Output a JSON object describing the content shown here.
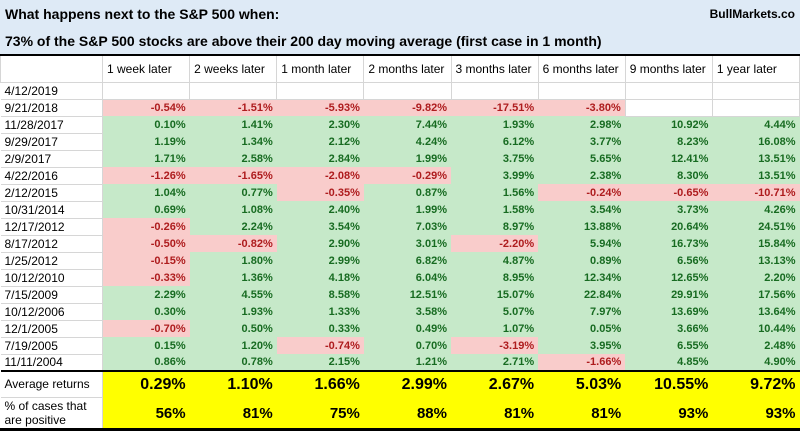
{
  "chart_data": {
    "type": "table",
    "title": "What happens next to the S&P 500 when:",
    "subtitle": "73% of the S&P 500 stocks are above their 200 day moving average (first case in 1 month)",
    "source": "BullMarkets.co",
    "columns": [
      "1 week later",
      "2 weeks later",
      "1 month later",
      "2 months later",
      "3 months later",
      "6 months later",
      "9 months later",
      "1 year later"
    ],
    "rows": [
      {
        "date": "4/12/2019",
        "values": [
          "",
          "",
          "",
          "",
          "",
          "",
          "",
          ""
        ]
      },
      {
        "date": "9/21/2018",
        "values": [
          "-0.54%",
          "-1.51%",
          "-5.93%",
          "-9.82%",
          "-17.51%",
          "-3.80%",
          "",
          ""
        ]
      },
      {
        "date": "11/28/2017",
        "values": [
          "0.10%",
          "1.41%",
          "2.30%",
          "7.44%",
          "1.93%",
          "2.98%",
          "10.92%",
          "4.44%"
        ]
      },
      {
        "date": "9/29/2017",
        "values": [
          "1.19%",
          "1.34%",
          "2.12%",
          "4.24%",
          "6.12%",
          "3.77%",
          "8.23%",
          "16.08%"
        ]
      },
      {
        "date": "2/9/2017",
        "values": [
          "1.71%",
          "2.58%",
          "2.84%",
          "1.99%",
          "3.75%",
          "5.65%",
          "12.41%",
          "13.51%"
        ]
      },
      {
        "date": "4/22/2016",
        "values": [
          "-1.26%",
          "-1.65%",
          "-2.08%",
          "-0.29%",
          "3.99%",
          "2.38%",
          "8.30%",
          "13.51%"
        ]
      },
      {
        "date": "2/12/2015",
        "values": [
          "1.04%",
          "0.77%",
          "-0.35%",
          "0.87%",
          "1.56%",
          "-0.24%",
          "-0.65%",
          "-10.71%"
        ]
      },
      {
        "date": "10/31/2014",
        "values": [
          "0.69%",
          "1.08%",
          "2.40%",
          "1.99%",
          "1.58%",
          "3.54%",
          "3.73%",
          "4.26%"
        ]
      },
      {
        "date": "12/17/2012",
        "values": [
          "-0.26%",
          "2.24%",
          "3.54%",
          "7.03%",
          "8.97%",
          "13.88%",
          "20.64%",
          "24.51%"
        ]
      },
      {
        "date": "8/17/2012",
        "values": [
          "-0.50%",
          "-0.82%",
          "2.90%",
          "3.01%",
          "-2.20%",
          "5.94%",
          "16.73%",
          "15.84%"
        ]
      },
      {
        "date": "1/25/2012",
        "values": [
          "-0.15%",
          "1.80%",
          "2.99%",
          "6.82%",
          "4.87%",
          "0.89%",
          "6.56%",
          "13.13%"
        ]
      },
      {
        "date": "10/12/2010",
        "values": [
          "-0.33%",
          "1.36%",
          "4.18%",
          "6.04%",
          "8.95%",
          "12.34%",
          "12.65%",
          "2.20%"
        ]
      },
      {
        "date": "7/15/2009",
        "values": [
          "2.29%",
          "4.55%",
          "8.58%",
          "12.51%",
          "15.07%",
          "22.84%",
          "29.91%",
          "17.56%"
        ]
      },
      {
        "date": "10/12/2006",
        "values": [
          "0.30%",
          "1.93%",
          "1.33%",
          "3.58%",
          "5.07%",
          "7.97%",
          "13.69%",
          "13.64%"
        ]
      },
      {
        "date": "12/1/2005",
        "values": [
          "-0.70%",
          "0.50%",
          "0.33%",
          "0.49%",
          "1.07%",
          "0.05%",
          "3.66%",
          "10.44%"
        ]
      },
      {
        "date": "7/19/2005",
        "values": [
          "0.15%",
          "1.20%",
          "-0.74%",
          "0.70%",
          "-3.19%",
          "3.95%",
          "6.55%",
          "2.48%"
        ]
      },
      {
        "date": "11/11/2004",
        "values": [
          "0.86%",
          "0.78%",
          "2.15%",
          "1.21%",
          "2.71%",
          "-1.66%",
          "4.85%",
          "4.90%"
        ]
      }
    ],
    "summary_rows": [
      {
        "label": "Average returns",
        "values": [
          "0.29%",
          "1.10%",
          "1.66%",
          "2.99%",
          "2.67%",
          "5.03%",
          "10.55%",
          "9.72%"
        ]
      },
      {
        "label": "% of cases that are positive",
        "values": [
          "56%",
          "81%",
          "75%",
          "88%",
          "81%",
          "81%",
          "93%",
          "93%"
        ]
      }
    ]
  },
  "colors": {
    "positive_bg": "#C6E9C9",
    "positive_text": "#176B21",
    "negative_bg": "#F9CCCB",
    "negative_text": "#AE1C1E",
    "summary_bg": "#FFFF00",
    "title_bg": "#DEEAF6",
    "gridline": "#D6D6D6"
  }
}
